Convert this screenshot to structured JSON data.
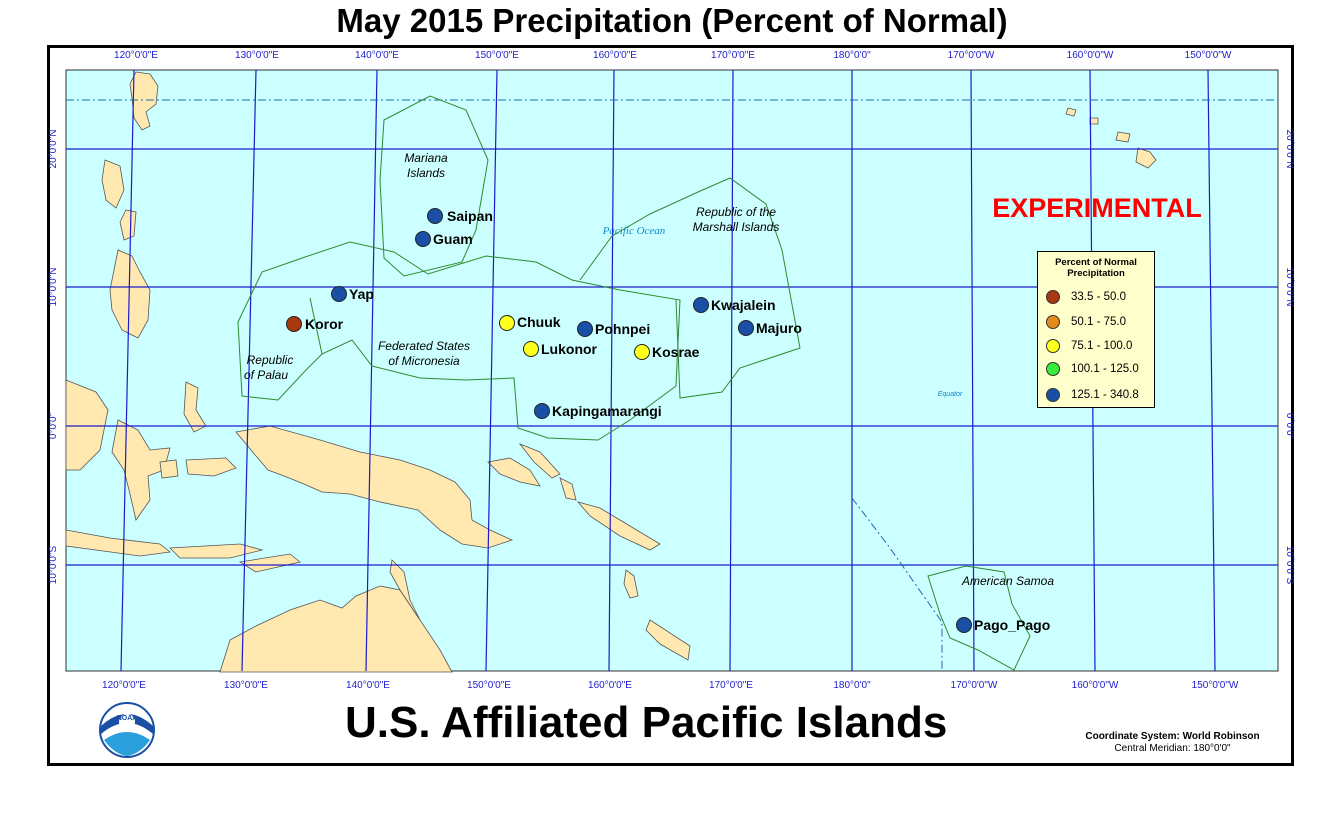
{
  "title": "May 2015 Precipitation (Percent of Normal)",
  "subtitle": "U.S. Affiliated Pacific Islands",
  "experimental_label": "EXPERIMENTAL",
  "coordinate_system": {
    "line1": "Coordinate System: World Robinson",
    "line2": "Central Meridian: 180°0'0\""
  },
  "logo_text": "NOAA",
  "colors": {
    "ocean": "#ccffff",
    "land": "#ffe9b0",
    "graticule": "#1c1ccc",
    "region_boundary": "#2e8b2e",
    "experimental": "#ff0000"
  },
  "legend": {
    "title": "Percent of Normal Precipitation",
    "items": [
      {
        "label": "33.5 - 50.0",
        "color": "#a8380f"
      },
      {
        "label": "50.1 - 75.0",
        "color": "#e38a1c"
      },
      {
        "label": "75.1 - 100.0",
        "color": "#ffff1e"
      },
      {
        "label": "100.1 - 125.0",
        "color": "#38ee38"
      },
      {
        "label": "125.1 - 340.8",
        "color": "#1a4fa6"
      }
    ]
  },
  "top_ticks": [
    "120°0'0\"E",
    "130°0'0\"E",
    "140°0'0\"E",
    "150°0'0\"E",
    "160°0'0\"E",
    "170°0'0\"E",
    "180°0'0\"",
    "170°0'0\"W",
    "160°0'0\"W",
    "150°0'0\"W"
  ],
  "bottom_ticks": [
    "120°0'0\"E",
    "130°0'0\"E",
    "140°0'0\"E",
    "150°0'0\"E",
    "160°0'0\"E",
    "170°0'0\"E",
    "180°0'0\"",
    "170°0'0\"W",
    "160°0'0\"W",
    "150°0'0\"W"
  ],
  "lat_ticks": [
    "20°0'0\"N",
    "10°0'0\"N",
    "0°0'0\"",
    "10°0'0\"S"
  ],
  "region_labels": [
    {
      "name": "mariana",
      "lines": [
        "Mariana",
        "Islands"
      ]
    },
    {
      "name": "marshall",
      "lines": [
        "Republic of the",
        "Marshall Islands"
      ]
    },
    {
      "name": "micronesia",
      "lines": [
        "Federated States",
        "of Micronesia"
      ]
    },
    {
      "name": "palau",
      "lines": [
        "Republic",
        "of Palau"
      ]
    },
    {
      "name": "samoa",
      "lines": [
        "American Samoa"
      ]
    }
  ],
  "ocean_label": "Pacific Ocean",
  "equator_label": "Equator",
  "stations": [
    {
      "name": "Saipan",
      "category": 4
    },
    {
      "name": "Guam",
      "category": 4
    },
    {
      "name": "Yap",
      "category": 4
    },
    {
      "name": "Koror",
      "category": 0
    },
    {
      "name": "Chuuk",
      "category": 2
    },
    {
      "name": "Lukonor",
      "category": 2
    },
    {
      "name": "Pohnpei",
      "category": 4
    },
    {
      "name": "Kosrae",
      "category": 2
    },
    {
      "name": "Kwajalein",
      "category": 4
    },
    {
      "name": "Majuro",
      "category": 4
    },
    {
      "name": "Kapingamarangi",
      "category": 4
    },
    {
      "name": "Pago_Pago",
      "category": 4
    }
  ]
}
